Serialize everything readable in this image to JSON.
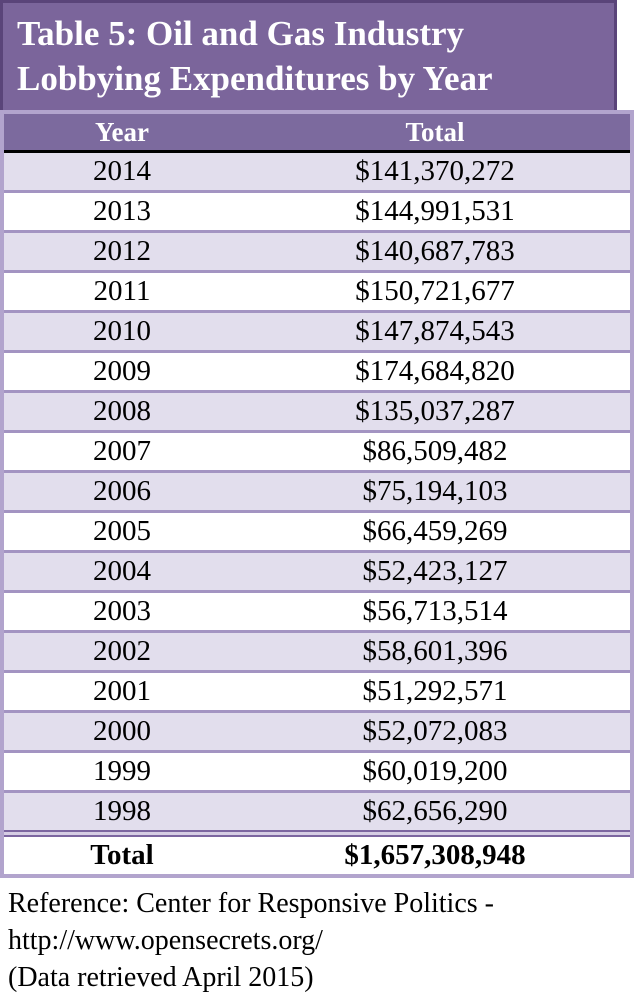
{
  "title": {
    "lines": [
      "Table 5: Oil and Gas Industry",
      "Lobbying Expenditures by Year"
    ]
  },
  "table": {
    "columns": {
      "year": "Year",
      "total": "Total"
    },
    "rows": [
      {
        "year": "2014",
        "total": "$141,370,272"
      },
      {
        "year": "2013",
        "total": "$144,991,531"
      },
      {
        "year": "2012",
        "total": "$140,687,783"
      },
      {
        "year": "2011",
        "total": "$150,721,677"
      },
      {
        "year": "2010",
        "total": "$147,874,543"
      },
      {
        "year": "2009",
        "total": "$174,684,820"
      },
      {
        "year": "2008",
        "total": "$135,037,287"
      },
      {
        "year": "2007",
        "total": "$86,509,482"
      },
      {
        "year": "2006",
        "total": "$75,194,103"
      },
      {
        "year": "2005",
        "total": "$66,459,269"
      },
      {
        "year": "2004",
        "total": "$52,423,127"
      },
      {
        "year": "2003",
        "total": "$56,713,514"
      },
      {
        "year": "2002",
        "total": "$58,601,396"
      },
      {
        "year": "2001",
        "total": "$51,292,571"
      },
      {
        "year": "2000",
        "total": "$52,072,083"
      },
      {
        "year": "1999",
        "total": "$60,019,200"
      },
      {
        "year": "1998",
        "total": "$62,656,290"
      }
    ],
    "total_row": {
      "label": "Total",
      "value": "$1,657,308,948"
    }
  },
  "footer": {
    "lines": [
      "Reference: Center for Responsive Politics -",
      "http://www.opensecrets.org/",
      "(Data retrieved April 2015)"
    ]
  },
  "colors": {
    "title_fill": "#7b659b",
    "title_border": "#5a4479",
    "header_fill": "#7c6a9e",
    "table_border": "#b2a4cd",
    "row_separator": "#a394c2",
    "row_alt_fill": "#e2deed",
    "double_rule": "#7c66a0",
    "header_rule": "#000000",
    "header_text": "#ffffff",
    "body_text": "#000000"
  },
  "chart_data": {
    "type": "table",
    "title": "Table 5: Oil and Gas Industry Lobbying Expenditures by Year",
    "columns": [
      "Year",
      "Total"
    ],
    "categories": [
      "2014",
      "2013",
      "2012",
      "2011",
      "2010",
      "2009",
      "2008",
      "2007",
      "2006",
      "2005",
      "2004",
      "2003",
      "2002",
      "2001",
      "2000",
      "1999",
      "1998"
    ],
    "values": [
      141370272,
      144991531,
      140687783,
      150721677,
      147874543,
      174684820,
      135037287,
      86509482,
      75194103,
      66459269,
      52423127,
      56713514,
      58601396,
      51292571,
      52072083,
      60019200,
      62656290
    ],
    "total": 1657308948,
    "source": "Reference: Center for Responsive Politics - http://www.opensecrets.org/ (Data retrieved April 2015)"
  }
}
